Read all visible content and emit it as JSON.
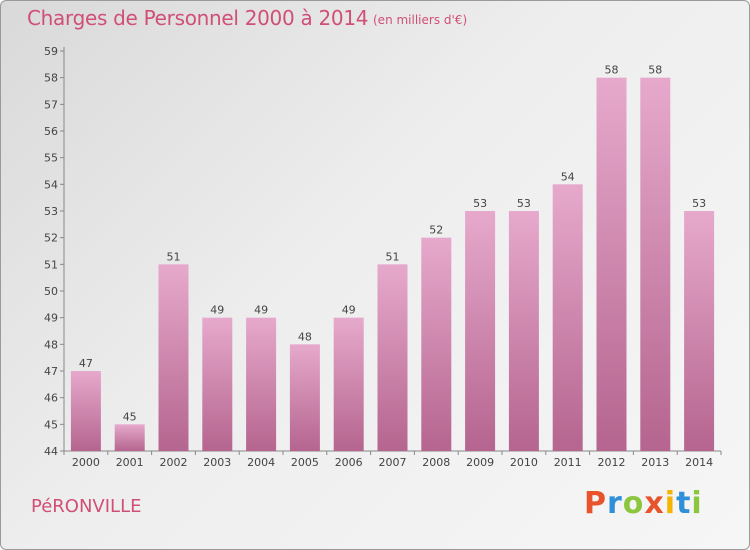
{
  "header": {
    "title": "Charges de Personnel 2000 à 2014",
    "unit": "(en milliers d'€)"
  },
  "footer": {
    "commune": "PéRONVILLE",
    "brand": "Proxiti",
    "brand_letters": [
      "P",
      "r",
      "o",
      "x",
      "i",
      "t",
      "i"
    ],
    "brand_colors": [
      "#e8532b",
      "#2f8fd8",
      "#8cc63f",
      "#e8532b",
      "#f4b400",
      "#2f8fd8",
      "#8cc63f"
    ]
  },
  "colors": {
    "bar_top": "#e6a9cc",
    "bar_bottom": "#b5658f",
    "accent": "#d04f77"
  },
  "chart_data": {
    "type": "bar",
    "categories": [
      "2000",
      "2001",
      "2002",
      "2003",
      "2004",
      "2005",
      "2006",
      "2007",
      "2008",
      "2009",
      "2010",
      "2011",
      "2012",
      "2013",
      "2014"
    ],
    "values": [
      47,
      45,
      51,
      49,
      49,
      48,
      49,
      51,
      52,
      53,
      53,
      54,
      58,
      58,
      53
    ],
    "ylim": [
      44,
      59
    ],
    "yticks": [
      44,
      45,
      46,
      47,
      48,
      49,
      50,
      51,
      52,
      53,
      54,
      55,
      56,
      57,
      58,
      59
    ],
    "grid": false,
    "data_labels": true
  }
}
